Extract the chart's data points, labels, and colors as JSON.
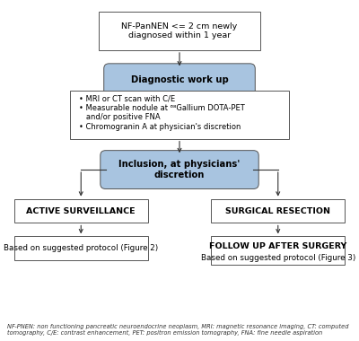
{
  "bg_color": "#ffffff",
  "blue_fill": "#a8c4e0",
  "white_fill": "#ffffff",
  "border_color": "#555555",
  "text_color": "#000000",
  "box1_text": "NF-PanNEN <= 2 cm newly\ndiagnosed within 1 year",
  "box2_text": "Diagnostic work up",
  "box3_text": "• MRI or CT scan with C/E\n• Measurable nodule at ⁶⁸Gallium DOTA-PET\n   and/or positive FNA\n• Chromogranin A at physician's discretion",
  "box4_text": "Inclusion, at physicians'\ndiscretion",
  "box5_text": "ACTIVE SURVEILLANCE",
  "box6_text": "SURGICAL RESECTION",
  "box7_text": "Based on suggested protocol (Figure 2)",
  "box8_line1": "FOLLOW UP AFTER SURGERY",
  "box8_line2": "Based on suggested protocol (Figure 3)",
  "footnote": "NF-PNEN: non functioning pancreatic neuroendocrine neoplasm, MRI: magnetic resonance imaging, CT: computed\ntomography, C/E: contrast enhancement, PET: positron emission tomography, FNA: fine needle aspiration"
}
